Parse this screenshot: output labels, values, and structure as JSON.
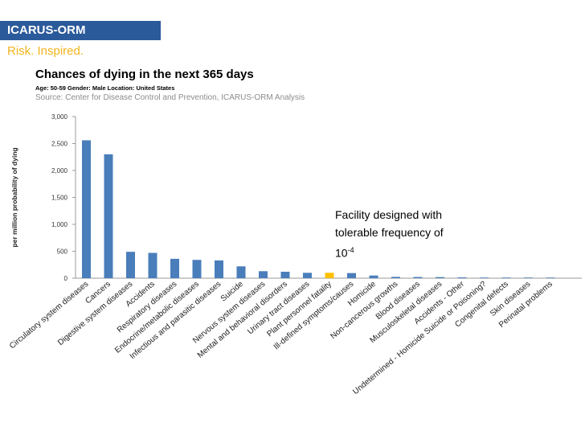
{
  "header": {
    "brand": "ICARUS-ORM",
    "tagline": "Risk. Inspired."
  },
  "colors": {
    "banner": "#2b5a9b",
    "tagline": "#f2b41c",
    "bar": "#4a7ebb",
    "highlight": "#ffc000"
  },
  "chart_data": {
    "type": "bar",
    "title": "Chances of dying in the next 365 days",
    "subtitle": "Age: 50-59 Gender: Male Location: United States",
    "source": "Source: Center for Disease Control and Prevention, ICARUS-ORM Analysis",
    "ylabel": "per million probability of dying",
    "xlabel": "",
    "ylim": [
      0,
      3000
    ],
    "yticks": [
      "0",
      "500",
      "1,000",
      "1,500",
      "2,000",
      "2,500",
      "3,000"
    ],
    "grid": false,
    "categories": [
      "Circulatory system diseases",
      "Cancers",
      "Digestive system diseases",
      "Accidents",
      "Respiratory diseases",
      "Endocrine/metabolic diseases",
      "Infectious and parasitic diseases",
      "Suicide",
      "Nervous system diseases",
      "Mental and behavioral disorders",
      "Urinary tract diseases",
      "Plant personnel fatality",
      "Ill-defined symptoms/causes",
      "Homicide",
      "Non-cancerous growths",
      "Blood diseases",
      "Musculoskeletal diseases",
      "Accidents - Other",
      "Undetermined - Homicide Suicide or Poisoning?",
      "Congenital defects",
      "Skin diseases",
      "Perinatal problems"
    ],
    "values": [
      2560,
      2300,
      490,
      470,
      360,
      340,
      330,
      220,
      130,
      120,
      100,
      100,
      95,
      50,
      25,
      22,
      20,
      15,
      12,
      10,
      3,
      1
    ],
    "highlight_index": 11,
    "annotation": {
      "lines": [
        "Facility designed with",
        "tolerable frequency of"
      ],
      "base": "10",
      "exponent": "-4"
    }
  }
}
